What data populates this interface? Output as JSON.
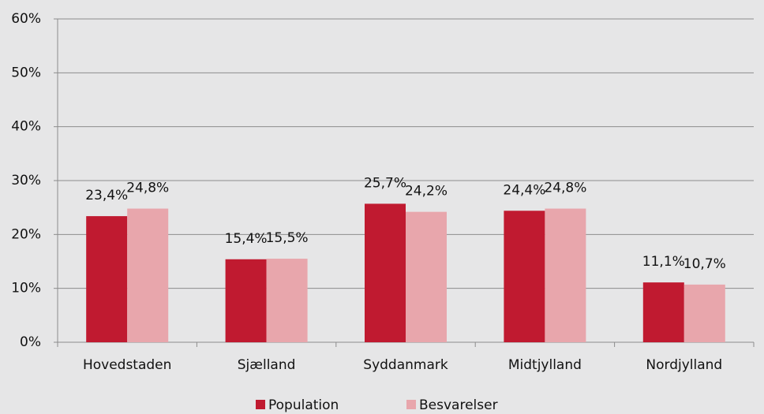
{
  "chart_data": {
    "type": "bar",
    "categories": [
      "Hovedstaden",
      "Sjælland",
      "Syddanmark",
      "Midtjylland",
      "Nordjylland"
    ],
    "series": [
      {
        "name": "Population",
        "color": "#c01a30",
        "values": [
          23.4,
          15.4,
          25.7,
          24.4,
          11.1
        ],
        "value_labels": [
          "23,4%",
          "15,4%",
          "25,7%",
          "24,4%",
          "11,1%"
        ]
      },
      {
        "name": "Besvarelser",
        "color": "#e8a6ac",
        "values": [
          24.8,
          15.5,
          24.2,
          24.8,
          10.7
        ],
        "value_labels": [
          "24,8%",
          "15,5%",
          "24,2%",
          "24,8%",
          "10,7%"
        ]
      }
    ],
    "ylim": [
      0,
      60
    ],
    "yticks": [
      {
        "value": 0,
        "label": "0%"
      },
      {
        "value": 10,
        "label": "10%"
      },
      {
        "value": 20,
        "label": "20%"
      },
      {
        "value": 30,
        "label": "30%"
      },
      {
        "value": 40,
        "label": "40%"
      },
      {
        "value": 50,
        "label": "50%"
      },
      {
        "value": 60,
        "label": "60%"
      }
    ],
    "grid": true,
    "legend": "bottom"
  }
}
